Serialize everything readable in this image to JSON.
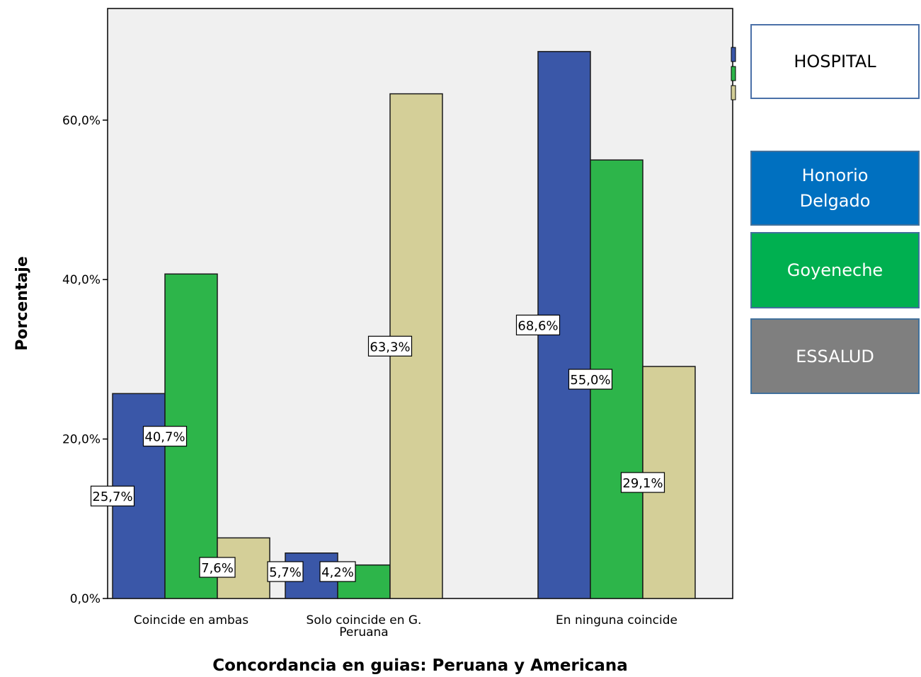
{
  "chart_data": {
    "type": "bar",
    "title": "",
    "xlabel": "Concordancia en guias: Peruana y Americana",
    "ylabel": "Porcentaje",
    "ylim": [
      0,
      74
    ],
    "yticks": [
      0,
      20,
      40,
      60
    ],
    "ytick_labels": [
      "0,0%",
      "20,0%",
      "40,0%",
      "60,0%"
    ],
    "categories": [
      [
        "Coincide en ambas"
      ],
      [
        "Solo coincide en G.",
        "Peruana"
      ],
      [
        "En ninguna coincide"
      ]
    ],
    "series": [
      {
        "name": "Honorio Delgado",
        "color": "#3a57a8",
        "values": [
          25.7,
          5.7,
          68.6
        ],
        "labels": [
          "25,7%",
          "5,7%",
          "68,6%"
        ]
      },
      {
        "name": "Goyeneche",
        "color": "#2db54a",
        "values": [
          40.7,
          4.2,
          55.0
        ],
        "labels": [
          "40,7%",
          "4,2%",
          "55,0%"
        ]
      },
      {
        "name": "ESSALUD",
        "color": "#d4cf98",
        "values": [
          7.6,
          63.3,
          29.1
        ],
        "labels": [
          "7,6%",
          "63,3%",
          "29,1%"
        ]
      }
    ],
    "grid": false,
    "legend_position": "right"
  },
  "legend": {
    "title": "HOSPITAL",
    "items": [
      {
        "label": "Honorio Delgado",
        "color": "#0070c0"
      },
      {
        "label": "Goyeneche",
        "color": "#00b050"
      },
      {
        "label": "ESSALUD",
        "color": "#7f7f7f"
      }
    ]
  }
}
